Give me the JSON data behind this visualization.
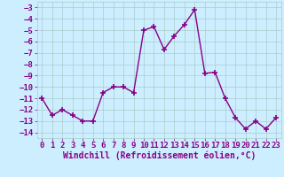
{
  "x": [
    0,
    1,
    2,
    3,
    4,
    5,
    6,
    7,
    8,
    9,
    10,
    11,
    12,
    13,
    14,
    15,
    16,
    17,
    18,
    19,
    20,
    21,
    22,
    23
  ],
  "y": [
    -11.0,
    -12.5,
    -12.0,
    -12.5,
    -13.0,
    -13.0,
    -10.5,
    -10.0,
    -10.0,
    -10.5,
    -5.0,
    -4.7,
    -6.7,
    -5.5,
    -4.5,
    -3.2,
    -8.8,
    -8.7,
    -11.0,
    -12.7,
    -13.7,
    -13.0,
    -13.7,
    -12.7
  ],
  "line_color": "#880088",
  "marker": "+",
  "marker_size": 4,
  "linewidth": 1.0,
  "xlabel": "Windchill (Refroidissement éolien,°C)",
  "xlim": [
    -0.5,
    23.5
  ],
  "ylim": [
    -14.5,
    -2.5
  ],
  "yticks": [
    -14,
    -13,
    -12,
    -11,
    -10,
    -9,
    -8,
    -7,
    -6,
    -5,
    -4,
    -3
  ],
  "xticks": [
    0,
    1,
    2,
    3,
    4,
    5,
    6,
    7,
    8,
    9,
    10,
    11,
    12,
    13,
    14,
    15,
    16,
    17,
    18,
    19,
    20,
    21,
    22,
    23
  ],
  "bg_color": "#cceeff",
  "grid_color": "#aacccc",
  "font_color": "#880088",
  "font_size": 6.5,
  "xlabel_fontsize": 7
}
